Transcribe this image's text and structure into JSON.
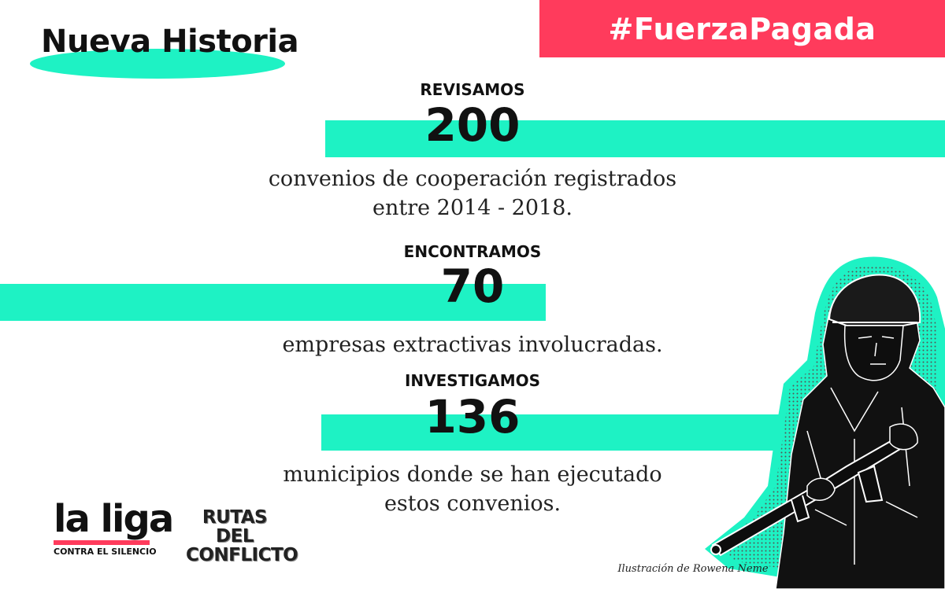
{
  "header": {
    "brand": "Nueva Historia",
    "hashtag": "#FuerzaPagada"
  },
  "stats": [
    {
      "verb": "REVISAMOS",
      "number": "200",
      "desc_line1": "convenios de cooperación registrados",
      "desc_line2": "entre 2014 - 2018."
    },
    {
      "verb": "ENCONTRAMOS",
      "number": "70",
      "desc_line1": "empresas extractivas involucradas.",
      "desc_line2": ""
    },
    {
      "verb": "INVESTIGAMOS",
      "number": "136",
      "desc_line1": "municipios donde se han ejecutado",
      "desc_line2": "estos convenios."
    }
  ],
  "logos": {
    "liga": "la liga",
    "liga_sub": "CONTRA EL SILENCIO",
    "rutas_line1": "RUTAS DEL",
    "rutas_line2": "CONFLICTO"
  },
  "credit": "Ilustración de Rowena Neme",
  "colors": {
    "accent": "#1ef2c4",
    "hashtag_bg": "#ff3b5c",
    "text": "#111111"
  },
  "illustration": "soldier-with-rifle-illustration"
}
